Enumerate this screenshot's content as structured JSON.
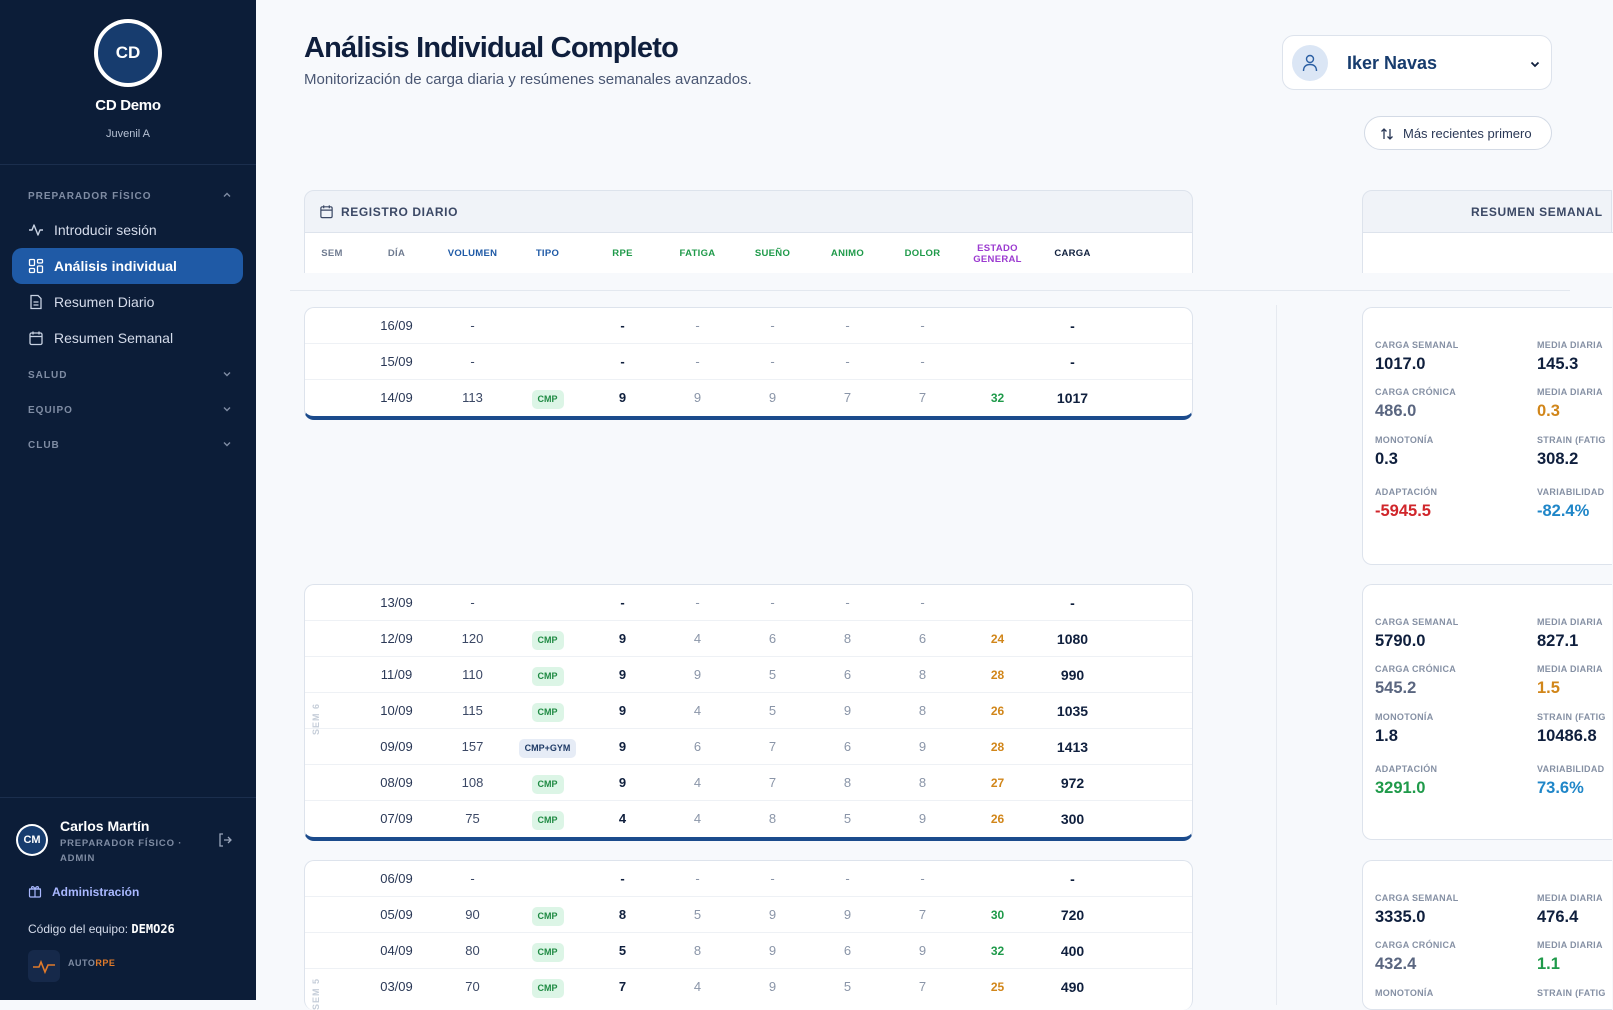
{
  "club": {
    "initials": "CD",
    "name": "CD Demo",
    "subtitle": "Juvenil A"
  },
  "nav": {
    "sections": [
      {
        "label": "PREPARADOR FÍSICO",
        "expanded": true
      },
      {
        "label": "SALUD",
        "expanded": false
      },
      {
        "label": "EQUIPO",
        "expanded": false
      },
      {
        "label": "CLUB",
        "expanded": false
      }
    ],
    "items": [
      {
        "label": "Introducir sesión",
        "icon": "activity-icon",
        "active": false
      },
      {
        "label": "Análisis individual",
        "icon": "dashboard-icon",
        "active": true
      },
      {
        "label": "Resumen Diario",
        "icon": "document-icon",
        "active": false
      },
      {
        "label": "Resumen Semanal",
        "icon": "calendar-icon",
        "active": false
      }
    ]
  },
  "user": {
    "initials": "CM",
    "name": "Carlos Martín",
    "role": "PREPARADOR FÍSICO · ADMIN",
    "admin_label": "Administración",
    "team_code_label": "Código del equipo:",
    "team_code": "DEMO26",
    "brand_a": "AUTO",
    "brand_b": "RPE"
  },
  "header": {
    "title": "Análisis Individual Completo",
    "subtitle": "Monitorización de carga diaria y resúmenes semanales avanzados.",
    "player": "Iker Navas",
    "sort_label": "Más recientes primero"
  },
  "daily": {
    "title": "REGISTRO DIARIO",
    "columns": [
      "SEM",
      "DÍA",
      "VOLUMEN",
      "TIPO",
      "RPE",
      "FATIGA",
      "SUEÑO",
      "ANIMO",
      "DOLOR",
      "ESTADO GENERAL",
      "CARGA"
    ]
  },
  "weekly_title": "RESUMEN SEMANAL",
  "colors": {
    "sidebar": "#0c1d38",
    "accent": "#1f5aa6",
    "green": "#1f9a4a",
    "orange": "#d1861a",
    "red": "#d0262b",
    "blue": "#1f86c8",
    "purple": "#9b3ad0"
  },
  "weeks": [
    {
      "label": "",
      "rows": [
        {
          "date": "16/09",
          "vol": "-",
          "type": "",
          "rpe": "-",
          "fatiga": "-",
          "sueno": "-",
          "animo": "-",
          "dolor": "-",
          "estado": "",
          "estado_color": "",
          "carga": "-"
        },
        {
          "date": "15/09",
          "vol": "-",
          "type": "",
          "rpe": "-",
          "fatiga": "-",
          "sueno": "-",
          "animo": "-",
          "dolor": "-",
          "estado": "",
          "estado_color": "",
          "carga": "-"
        },
        {
          "date": "14/09",
          "vol": "113",
          "type": "CMP",
          "rpe": "9",
          "fatiga": "9",
          "sueno": "9",
          "animo": "7",
          "dolor": "7",
          "estado": "32",
          "estado_color": "green",
          "carga": "1017"
        }
      ],
      "summary": [
        {
          "label": "CARGA SEMANAL",
          "value": "1017.0",
          "color": "dark"
        },
        {
          "label": "MEDIA DIARIA",
          "value": "145.3",
          "color": "dark"
        },
        {
          "label": "CARGA CRÓNICA",
          "value": "486.0",
          "color": "gray"
        },
        {
          "label": "MEDIA DIARIA",
          "value": "0.3",
          "color": "orange"
        },
        {
          "label": "MONOTONÍA",
          "value": "0.3",
          "color": "dark"
        },
        {
          "label": "STRAIN (FATIG",
          "value": "308.2",
          "color": "dark"
        },
        {
          "label": "ADAPTACIÓN",
          "value": "-5945.5",
          "color": "red"
        },
        {
          "label": "VARIABILIDAD",
          "value": "-82.4%",
          "color": "blue"
        }
      ]
    },
    {
      "label": "SEM 6",
      "rows": [
        {
          "date": "13/09",
          "vol": "-",
          "type": "",
          "rpe": "-",
          "fatiga": "-",
          "sueno": "-",
          "animo": "-",
          "dolor": "-",
          "estado": "",
          "estado_color": "",
          "carga": "-"
        },
        {
          "date": "12/09",
          "vol": "120",
          "type": "CMP",
          "rpe": "9",
          "fatiga": "4",
          "sueno": "6",
          "animo": "8",
          "dolor": "6",
          "estado": "24",
          "estado_color": "orange",
          "carga": "1080"
        },
        {
          "date": "11/09",
          "vol": "110",
          "type": "CMP",
          "rpe": "9",
          "fatiga": "9",
          "sueno": "5",
          "animo": "6",
          "dolor": "8",
          "estado": "28",
          "estado_color": "orange",
          "carga": "990"
        },
        {
          "date": "10/09",
          "vol": "115",
          "type": "CMP",
          "rpe": "9",
          "fatiga": "4",
          "sueno": "5",
          "animo": "9",
          "dolor": "8",
          "estado": "26",
          "estado_color": "orange",
          "carga": "1035"
        },
        {
          "date": "09/09",
          "vol": "157",
          "type": "CMP+GYM",
          "rpe": "9",
          "fatiga": "6",
          "sueno": "7",
          "animo": "6",
          "dolor": "9",
          "estado": "28",
          "estado_color": "orange",
          "carga": "1413"
        },
        {
          "date": "08/09",
          "vol": "108",
          "type": "CMP",
          "rpe": "9",
          "fatiga": "4",
          "sueno": "7",
          "animo": "8",
          "dolor": "8",
          "estado": "27",
          "estado_color": "orange",
          "carga": "972"
        },
        {
          "date": "07/09",
          "vol": "75",
          "type": "CMP",
          "rpe": "4",
          "fatiga": "4",
          "sueno": "8",
          "animo": "5",
          "dolor": "9",
          "estado": "26",
          "estado_color": "orange",
          "carga": "300"
        }
      ],
      "summary": [
        {
          "label": "CARGA SEMANAL",
          "value": "5790.0",
          "color": "dark"
        },
        {
          "label": "MEDIA DIARIA",
          "value": "827.1",
          "color": "dark"
        },
        {
          "label": "CARGA CRÓNICA",
          "value": "545.2",
          "color": "gray"
        },
        {
          "label": "MEDIA DIARIA",
          "value": "1.5",
          "color": "orange"
        },
        {
          "label": "MONOTONÍA",
          "value": "1.8",
          "color": "dark"
        },
        {
          "label": "STRAIN (FATIG",
          "value": "10486.8",
          "color": "dark"
        },
        {
          "label": "ADAPTACIÓN",
          "value": "3291.0",
          "color": "green"
        },
        {
          "label": "VARIABILIDAD",
          "value": "73.6%",
          "color": "blue"
        }
      ]
    },
    {
      "label": "SEM 5",
      "rows": [
        {
          "date": "06/09",
          "vol": "-",
          "type": "",
          "rpe": "-",
          "fatiga": "-",
          "sueno": "-",
          "animo": "-",
          "dolor": "-",
          "estado": "",
          "estado_color": "",
          "carga": "-"
        },
        {
          "date": "05/09",
          "vol": "90",
          "type": "CMP",
          "rpe": "8",
          "fatiga": "5",
          "sueno": "9",
          "animo": "9",
          "dolor": "7",
          "estado": "30",
          "estado_color": "green",
          "carga": "720"
        },
        {
          "date": "04/09",
          "vol": "80",
          "type": "CMP",
          "rpe": "5",
          "fatiga": "8",
          "sueno": "9",
          "animo": "6",
          "dolor": "9",
          "estado": "32",
          "estado_color": "green",
          "carga": "400"
        },
        {
          "date": "03/09",
          "vol": "70",
          "type": "CMP",
          "rpe": "7",
          "fatiga": "4",
          "sueno": "9",
          "animo": "5",
          "dolor": "7",
          "estado": "25",
          "estado_color": "orange",
          "carga": "490"
        }
      ],
      "summary": [
        {
          "label": "CARGA SEMANAL",
          "value": "3335.0",
          "color": "dark"
        },
        {
          "label": "MEDIA DIARIA",
          "value": "476.4",
          "color": "dark"
        },
        {
          "label": "CARGA CRÓNICA",
          "value": "432.4",
          "color": "gray"
        },
        {
          "label": "MEDIA DIARIA",
          "value": "1.1",
          "color": "green"
        },
        {
          "label": "MONOTONÍA",
          "value": "",
          "color": "dark"
        },
        {
          "label": "STRAIN (FATIG",
          "value": "",
          "color": "dark"
        }
      ]
    }
  ]
}
